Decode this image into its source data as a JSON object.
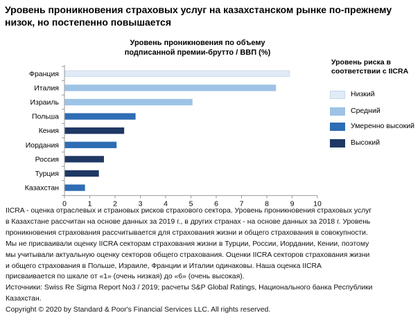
{
  "headline": [
    "Уровень проникновения страховых услуг на казахстанском рынке по-прежнему",
    "низок, но постепенно повышается"
  ],
  "chart_data": {
    "type": "bar",
    "orientation": "horizontal",
    "title": [
      "Уровень проникновения по объему",
      "подписанной премии-брутто / ВВП (%)"
    ],
    "categories": [
      "Франция",
      "Италия",
      "Израиль",
      "Польша",
      "Кения",
      "Иордания",
      "Россия",
      "Турция",
      "Казахстан"
    ],
    "values": [
      8.9,
      8.35,
      5.05,
      2.8,
      2.35,
      2.05,
      1.55,
      1.35,
      0.8
    ],
    "risk_levels": [
      "low",
      "medium",
      "medium",
      "moderately_high",
      "high",
      "moderately_high",
      "high",
      "high",
      "moderately_high"
    ],
    "xlim": [
      0,
      10
    ],
    "xticks": [
      "0",
      "1",
      "2",
      "3",
      "4",
      "5",
      "6",
      "7",
      "8",
      "9",
      "10"
    ],
    "grid": false
  },
  "legend": {
    "title": [
      "Уровень риска в",
      "соответствии с IICRA"
    ],
    "items": [
      {
        "key": "low",
        "label": "Низкий",
        "color": "#e1ebf7",
        "border": "#c7d6ea"
      },
      {
        "key": "medium",
        "label": "Средний",
        "color": "#9dc3e6",
        "border": "#9dc3e6"
      },
      {
        "key": "moderately_high",
        "label": "Умеренно высокий",
        "color": "#2e6db4",
        "border": "#2e6db4"
      },
      {
        "key": "high",
        "label": "Высокий",
        "color": "#1f3864",
        "border": "#1f3864"
      }
    ]
  },
  "notes": [
    "IICRA - оценка отраслевых и страновых рисков страхового сектора. Уровень проникновения страховых услуг",
    " в Казахстане рассчитан на основе данных за 2019 г., в других странах - на основе данных за 2018 г. Уровень",
    "проникновения страхования рассчитывается для страхования жизни и общего страхования в совокупности.",
    "Мы не присваивали оценку IICRA секторам страхования жизни в Турции, России, Иордании, Кении, поэтому",
    "мы учитывали актуальную оценку секторов общего страхования. Оценки IICRA секторов страхования жизни",
    " и общего страхования в Польше, Израиле, Франции и Италии одинаковы. Наша оценка IICRA",
    "присваивается по шкале от «1» (очень низкая) до «6» (очень высокая).",
    "Источники: Swiss Re Sigma Report No3 / 2019; расчеты S&P Global Ratings, Национального банка Республики",
    "Казахстан.",
    "Copyright © 2020 by Standard & Poor's Financial Services LLC. All rights reserved."
  ]
}
